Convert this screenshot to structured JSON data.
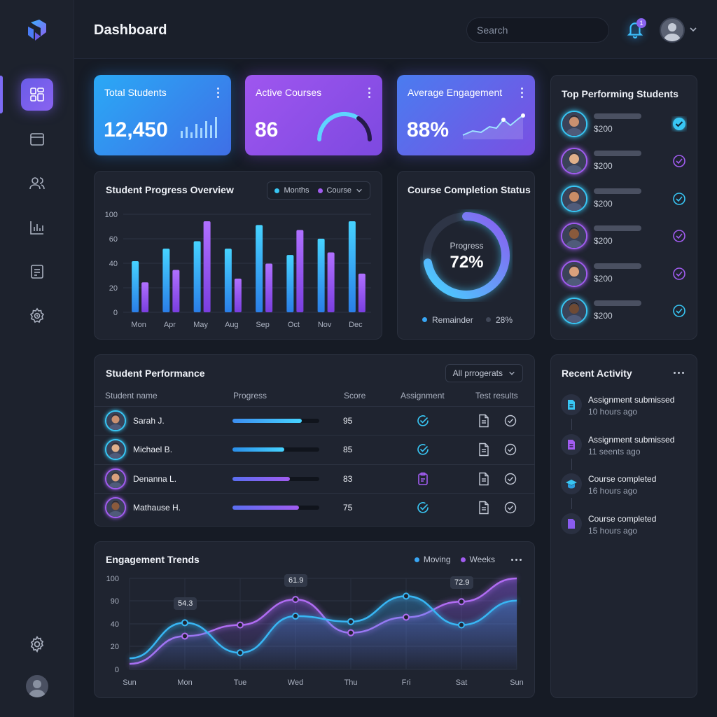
{
  "header": {
    "title": "Dashboard",
    "search_placeholder": "Search",
    "notification_count": "1"
  },
  "stats": [
    {
      "title": "Total Students",
      "value": "12,450"
    },
    {
      "title": "Active Courses",
      "value": "86"
    },
    {
      "title": "Average Engagement",
      "value": "88%"
    }
  ],
  "progress_overview": {
    "title": "Student Progress Overview",
    "legend": [
      "Months",
      "Course"
    ]
  },
  "completion": {
    "title": "Course Completion Status",
    "center_label": "Progress",
    "center_value": "72%",
    "legend_label": "Remainder",
    "legend_value": "28%",
    "progress_fraction": 0.72
  },
  "top_students": {
    "title": "Top Performing Students",
    "items": [
      {
        "amount": "$200",
        "checked": true
      },
      {
        "amount": "$200",
        "checked": false
      },
      {
        "amount": "$200",
        "checked": false
      },
      {
        "amount": "$200",
        "checked": false
      },
      {
        "amount": "$200",
        "checked": false
      },
      {
        "amount": "$200",
        "checked": false
      }
    ]
  },
  "performance": {
    "title": "Student Performance",
    "filter": "All prrogerats",
    "columns": [
      "Student name",
      "Progress",
      "Score",
      "Assignment",
      "Test results"
    ],
    "rows": [
      {
        "name": "Sarah J.",
        "progress": 0.8,
        "score": "95"
      },
      {
        "name": "Michael B.",
        "progress": 0.6,
        "score": "85"
      },
      {
        "name": "Denanna L.",
        "progress": 0.66,
        "score": "83"
      },
      {
        "name": "Mathause H.",
        "progress": 0.77,
        "score": "75"
      }
    ]
  },
  "recent_activity": {
    "title": "Recent Activity",
    "items": [
      {
        "title": "Assignment submissed",
        "time": "10 hours ago"
      },
      {
        "title": "Assignment submissed",
        "time": "11 seents ago"
      },
      {
        "title": "Course completed",
        "time": "16 hours ago"
      },
      {
        "title": "Course completed",
        "time": "15 hours ago"
      }
    ]
  },
  "engagement": {
    "title": "Engagement Trends",
    "legend": [
      "Moving",
      "Weeks"
    ],
    "tooltips": [
      "54.3",
      "61.9",
      "72.9"
    ]
  },
  "colors": {
    "cyan": "#38c6f4",
    "purple": "#a15cf0",
    "accent": "#7d6cf5"
  },
  "chart_data": [
    {
      "type": "bar",
      "title": "Student Progress Overview",
      "categories": [
        "Mon",
        "Apr",
        "May",
        "Aug",
        "Sep",
        "Oct",
        "Nov",
        "Dec"
      ],
      "yticks": [
        "100",
        "60",
        "40",
        "20",
        "0"
      ],
      "series": [
        {
          "name": "Months",
          "values": [
            41,
            51,
            57,
            51,
            70,
            46,
            59,
            73
          ]
        },
        {
          "name": "Course",
          "values": [
            24,
            34,
            73,
            27,
            39,
            66,
            48,
            31
          ]
        }
      ],
      "ylim": [
        0,
        80
      ]
    },
    {
      "type": "line",
      "title": "Engagement Trends",
      "categories": [
        "Sun",
        "Mon",
        "Tue",
        "Wed",
        "Thu",
        "Fri",
        "Sat",
        "Sun"
      ],
      "yticks": [
        "100",
        "90",
        "40",
        "20",
        "0"
      ],
      "series": [
        {
          "name": "Moving",
          "values": [
            10,
            42,
            15,
            48,
            43,
            66,
            40,
            62
          ]
        },
        {
          "name": "Weeks",
          "values": [
            5,
            30,
            40,
            63,
            33,
            47,
            61,
            82
          ]
        }
      ],
      "ylim": [
        0,
        80
      ]
    }
  ]
}
